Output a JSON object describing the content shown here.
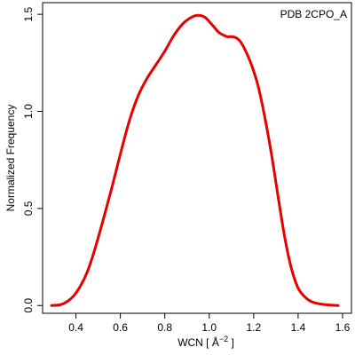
{
  "chart_data": {
    "type": "line",
    "title": "",
    "annotation": "PDB 2CPO_A",
    "xlabel": "WCN [ Å",
    "xlabel_superscript": "−2",
    "xlabel_suffix": " ]",
    "ylabel": "Normalized Frequency",
    "xlim": [
      0.25,
      1.64
    ],
    "ylim": [
      -0.04,
      1.56
    ],
    "x_ticks": [
      0.4,
      0.6,
      0.8,
      1.0,
      1.2,
      1.4,
      1.6
    ],
    "x_tick_labels": [
      "0.4",
      "0.6",
      "0.8",
      "1.0",
      "1.2",
      "1.4",
      "1.6"
    ],
    "y_ticks": [
      0.0,
      0.5,
      1.0,
      1.5
    ],
    "y_tick_labels": [
      "0.0",
      "0.5",
      "1.0",
      "1.5"
    ],
    "grid": false,
    "series": [
      {
        "color": "#e60000",
        "x": [
          0.29,
          0.33,
          0.36,
          0.39,
          0.42,
          0.45,
          0.48,
          0.52,
          0.56,
          0.6,
          0.64,
          0.68,
          0.72,
          0.76,
          0.8,
          0.84,
          0.88,
          0.92,
          0.95,
          0.98,
          1.01,
          1.04,
          1.06,
          1.08,
          1.1,
          1.12,
          1.14,
          1.16,
          1.19,
          1.22,
          1.25,
          1.28,
          1.31,
          1.34,
          1.37,
          1.4,
          1.43,
          1.46,
          1.5,
          1.54,
          1.58
        ],
        "y": [
          0.0,
          0.004,
          0.02,
          0.05,
          0.1,
          0.17,
          0.27,
          0.43,
          0.6,
          0.78,
          0.95,
          1.08,
          1.17,
          1.24,
          1.31,
          1.39,
          1.45,
          1.485,
          1.495,
          1.485,
          1.45,
          1.41,
          1.395,
          1.385,
          1.385,
          1.38,
          1.36,
          1.32,
          1.24,
          1.13,
          0.97,
          0.78,
          0.56,
          0.35,
          0.19,
          0.09,
          0.045,
          0.02,
          0.008,
          0.003,
          0.0
        ]
      }
    ]
  }
}
